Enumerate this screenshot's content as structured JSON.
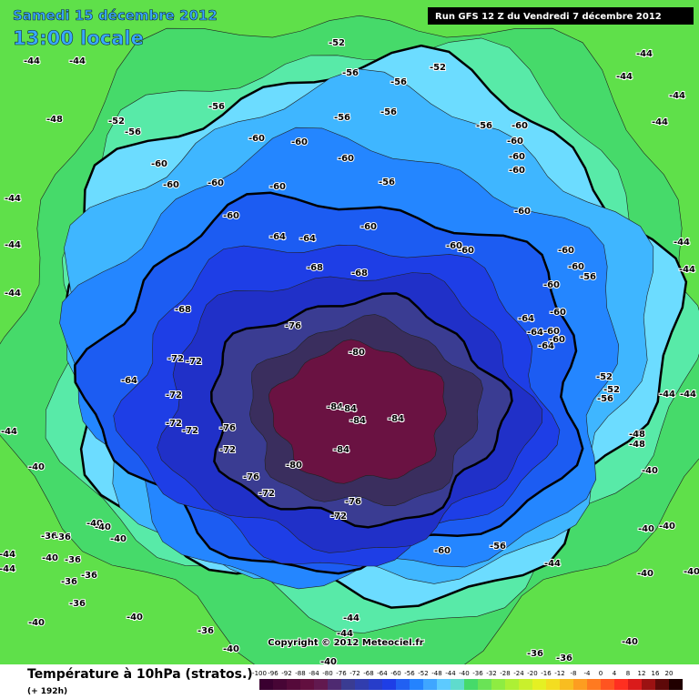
{
  "header": {
    "date": "Samedi 15 décembre 2012",
    "time": "13:00 locale",
    "run": "Run GFS 12 Z du Vendredi 7 décembre 2012"
  },
  "copyright": "Copyright © 2012 Meteociel.fr",
  "footer": {
    "title": "Température à 10hPa (stratos.)",
    "lead": "(+ 192h)"
  },
  "legend": {
    "ticks": [
      -100,
      -96,
      -92,
      -88,
      -84,
      -80,
      -76,
      -72,
      -68,
      -64,
      -60,
      -56,
      -52,
      -48,
      -44,
      -40,
      -36,
      -32,
      -28,
      -24,
      -20,
      -16,
      -12,
      -8,
      -4,
      0,
      4,
      8,
      12,
      16,
      20
    ]
  },
  "contour_labels": [
    -44,
    -48,
    -52,
    -56,
    -44,
    -60,
    -60,
    -56,
    -60,
    -60,
    -60,
    -52,
    -56,
    -56,
    -56,
    -56,
    -52,
    -56,
    -60,
    -60,
    -60,
    -60,
    -60,
    -60,
    -56,
    -60,
    -60,
    -60,
    -64,
    -64,
    -68,
    -68,
    -68,
    -76,
    -80,
    -72,
    -72,
    -64,
    -72,
    -72,
    -72,
    -76,
    -72,
    -76,
    -72,
    -80,
    -84,
    -84,
    -84,
    -84,
    -84,
    -76,
    -72,
    -60,
    -56,
    -44,
    -60,
    -60,
    -60,
    -60,
    -56,
    -60,
    -60,
    -64,
    -64,
    -60,
    -60,
    -64,
    -52,
    -52,
    -56,
    -48,
    -48,
    -44,
    -44,
    -44,
    -44,
    -44,
    -44,
    -44,
    -44,
    -44,
    -44,
    -44,
    -44,
    -40,
    -36,
    -36,
    -40,
    -36,
    -36,
    -36,
    -36,
    -44,
    -44,
    -40,
    -40,
    -36,
    -40,
    -44,
    -44,
    -40,
    -36,
    -36,
    -40,
    -40,
    -40,
    -40,
    -40,
    -40,
    -40,
    -40,
    -40
  ]
}
